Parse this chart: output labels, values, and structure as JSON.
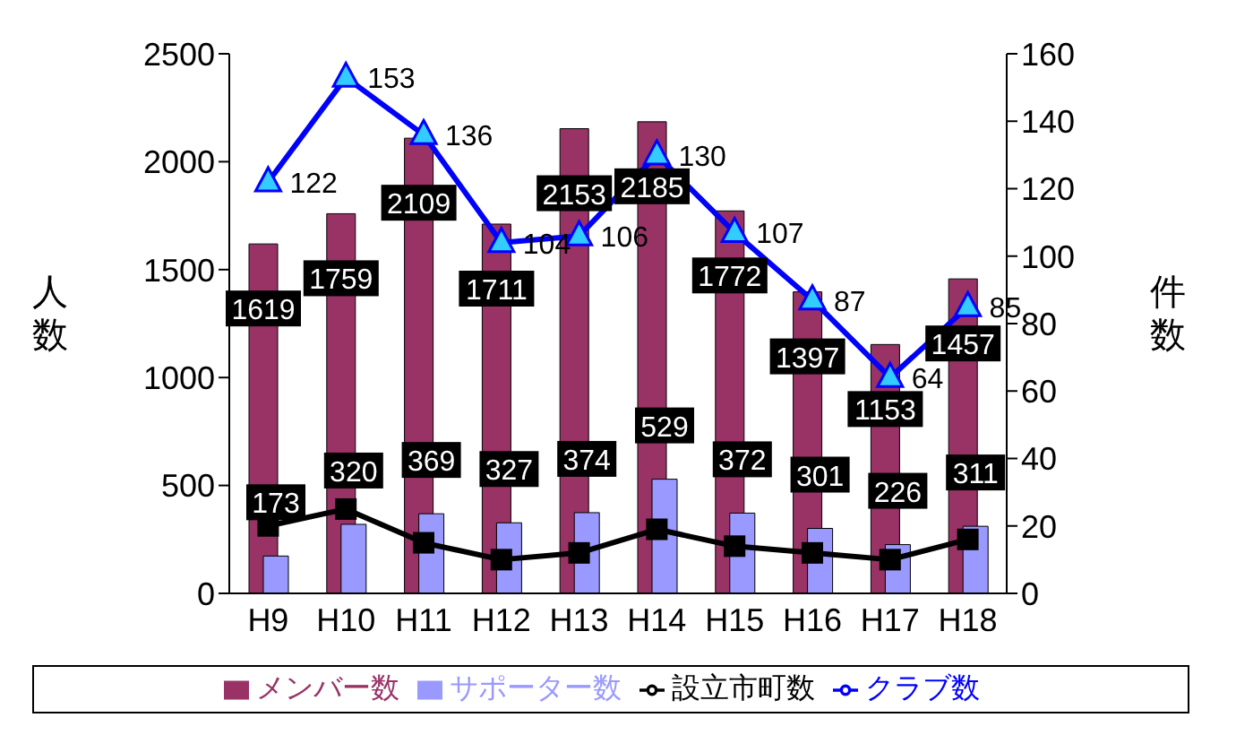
{
  "chart_data": {
    "type": "bar",
    "categories": [
      "H9",
      "H10",
      "H11",
      "H12",
      "H13",
      "H14",
      "H15",
      "H16",
      "H17",
      "H18"
    ],
    "ylabel": "人数",
    "y2label": "件数",
    "ylim": [
      0,
      2500
    ],
    "yticks": [
      0,
      500,
      1000,
      1500,
      2000,
      2500
    ],
    "y2lim": [
      0,
      160
    ],
    "y2ticks": [
      0,
      20,
      40,
      60,
      80,
      100,
      120,
      140,
      160
    ],
    "grid": false,
    "legend": "bottom",
    "series": [
      {
        "name": "メンバー数",
        "color": "#993366",
        "values": [
          1619,
          1759,
          2109,
          1711,
          2153,
          2185,
          1772,
          1397,
          1153,
          1457
        ],
        "value_labels": [
          "1619",
          "1759",
          "2109",
          "1711",
          "2153",
          "2185",
          "1772",
          "1397",
          "1153",
          "1457"
        ]
      },
      {
        "name": "サポーター数",
        "color": "#9999ff",
        "values": [
          173,
          320,
          369,
          327,
          374,
          529,
          372,
          301,
          226,
          311
        ],
        "value_labels": [
          "173",
          "320",
          "369",
          "327",
          "374",
          "529",
          "372",
          "301",
          "226",
          "311"
        ]
      },
      {
        "name": "設立市町数",
        "type": "line",
        "axis": "y2",
        "color": "#000000",
        "marker": "square",
        "values": [
          20,
          25,
          15,
          10,
          12,
          19,
          14,
          12,
          10,
          16
        ]
      },
      {
        "name": "クラブ数",
        "type": "line",
        "axis": "y2",
        "color": "#0000ff",
        "marker": "triangle",
        "values": [
          122,
          153,
          136,
          104,
          106,
          130,
          107,
          87,
          64,
          85
        ],
        "value_labels": [
          "122",
          "153",
          "136",
          "104",
          "106",
          "130",
          "107",
          "87",
          "64",
          "85"
        ]
      }
    ]
  }
}
